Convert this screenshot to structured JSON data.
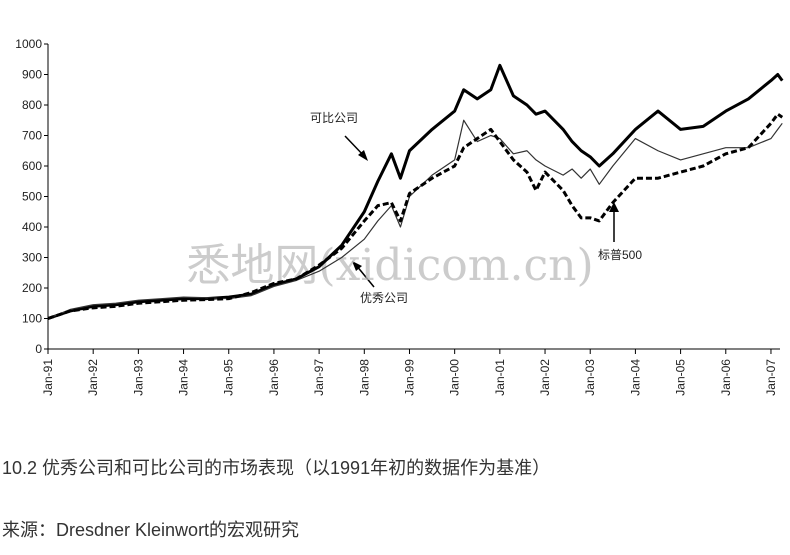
{
  "chart_data": {
    "type": "line",
    "x": [
      1991.0,
      1991.5,
      1992.0,
      1992.5,
      1993.0,
      1993.5,
      1994.0,
      1994.5,
      1995.0,
      1995.5,
      1996.0,
      1996.5,
      1997.0,
      1997.5,
      1998.0,
      1998.3,
      1998.6,
      1998.8,
      1999.0,
      1999.5,
      2000.0,
      2000.2,
      2000.5,
      2000.8,
      2001.0,
      2001.3,
      2001.6,
      2001.8,
      2002.0,
      2002.4,
      2002.6,
      2002.8,
      2003.0,
      2003.2,
      2003.5,
      2004.0,
      2004.5,
      2005.0,
      2005.5,
      2006.0,
      2006.5,
      2007.0,
      2007.15,
      2007.25
    ],
    "series": [
      {
        "name": "可比公司",
        "color": "#000000",
        "line_style": "bold",
        "values": [
          100,
          125,
          140,
          145,
          155,
          160,
          165,
          165,
          170,
          180,
          210,
          230,
          270,
          340,
          450,
          550,
          640,
          560,
          650,
          720,
          780,
          850,
          820,
          850,
          930,
          830,
          800,
          770,
          780,
          720,
          680,
          650,
          630,
          600,
          640,
          720,
          780,
          720,
          730,
          780,
          820,
          880,
          900,
          880
        ]
      },
      {
        "name": "优秀公司",
        "color": "#333333",
        "line_style": "thin",
        "values": [
          100,
          130,
          145,
          150,
          160,
          165,
          170,
          168,
          165,
          175,
          205,
          225,
          255,
          300,
          360,
          420,
          470,
          400,
          500,
          570,
          620,
          750,
          680,
          700,
          690,
          640,
          650,
          620,
          600,
          570,
          590,
          560,
          590,
          540,
          600,
          690,
          650,
          620,
          640,
          660,
          660,
          690,
          720,
          740
        ]
      },
      {
        "name": "标普500",
        "color": "#000000",
        "line_style": "dashed",
        "values": [
          100,
          125,
          135,
          140,
          150,
          155,
          160,
          162,
          165,
          185,
          215,
          230,
          275,
          330,
          420,
          470,
          480,
          420,
          510,
          560,
          600,
          660,
          690,
          720,
          680,
          620,
          580,
          520,
          580,
          520,
          470,
          430,
          430,
          420,
          480,
          560,
          560,
          580,
          600,
          640,
          660,
          740,
          770,
          760
        ]
      }
    ],
    "xlim": [
      1991,
      2007.2
    ],
    "xticks": [
      {
        "value": 1991,
        "label": "Jan-91"
      },
      {
        "value": 1992,
        "label": "Jan-92"
      },
      {
        "value": 1993,
        "label": "Jan-93"
      },
      {
        "value": 1994,
        "label": "Jan-94"
      },
      {
        "value": 1995,
        "label": "Jan-95"
      },
      {
        "value": 1996,
        "label": "Jan-96"
      },
      {
        "value": 1997,
        "label": "Jan-97"
      },
      {
        "value": 1998,
        "label": "Jan-98"
      },
      {
        "value": 1999,
        "label": "Jan-99"
      },
      {
        "value": 2000,
        "label": "Jan-00"
      },
      {
        "value": 2001,
        "label": "Jan-01"
      },
      {
        "value": 2002,
        "label": "Jan-02"
      },
      {
        "value": 2003,
        "label": "Jan-03"
      },
      {
        "value": 2004,
        "label": "Jan-04"
      },
      {
        "value": 2005,
        "label": "Jan-05"
      },
      {
        "value": 2006,
        "label": "Jan-06"
      },
      {
        "value": 2007,
        "label": "Jan-07"
      }
    ],
    "ylim": [
      0,
      1000
    ],
    "yticks": [
      0,
      100,
      200,
      300,
      400,
      500,
      600,
      700,
      800,
      900,
      1000
    ],
    "grid": false,
    "watermark": "悉地网(xidicom.cn)",
    "caption": "10.2 优秀公司和可比公司的市场表现（以1991年初的数据作为基准）",
    "source": "来源：Dresdner Kleinwort的宏观研究"
  }
}
